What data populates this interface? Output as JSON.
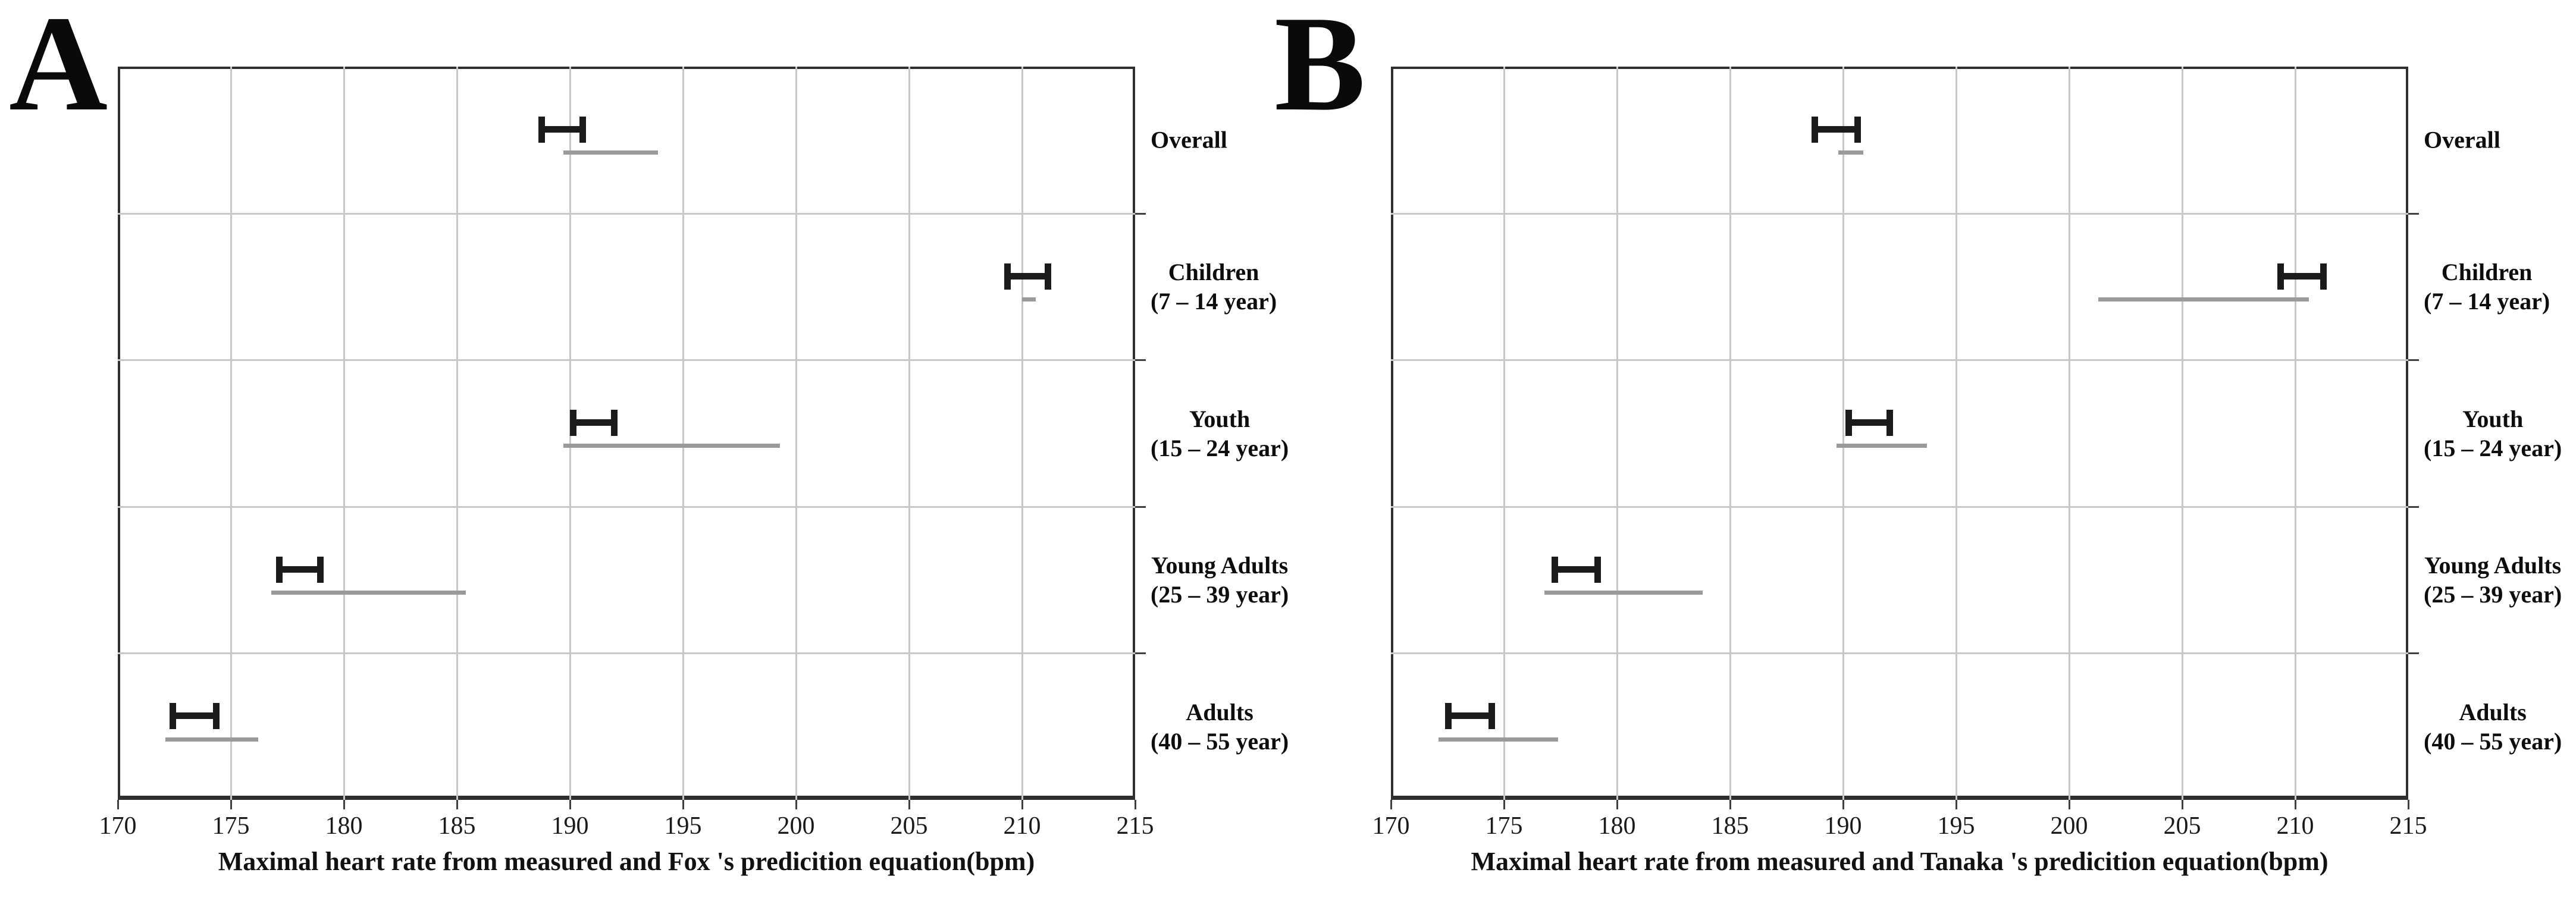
{
  "chart_data": [
    {
      "type": "errorbar",
      "panel_label": "A",
      "xlabel": "Maximal heart rate from measured and Fox 's predicition equation(bpm)",
      "xlim": [
        170,
        215
      ],
      "xticks": [
        170,
        175,
        180,
        185,
        190,
        195,
        200,
        205,
        210,
        215
      ],
      "grid": true,
      "legend": "none",
      "categories": [
        [
          "Overall"
        ],
        [
          "Children",
          "(7 – 14 year)"
        ],
        [
          "Youth",
          "(15 – 24 year)"
        ],
        [
          "Young Adults",
          "(25 – 39 year)"
        ],
        [
          "Adults",
          "(40 – 55 year)"
        ]
      ],
      "series": [
        {
          "name": "measured-ci-black-capped",
          "color": "#1b1b1b",
          "style": "capped",
          "intervals": [
            [
              188.6,
              190.7
            ],
            [
              209.2,
              211.3
            ],
            [
              190.0,
              192.1
            ],
            [
              177.0,
              179.1
            ],
            [
              172.3,
              174.5
            ]
          ]
        },
        {
          "name": "prediction-ci-gray",
          "color": "#9a9a9a",
          "style": "plain",
          "intervals": [
            [
              189.7,
              193.9
            ],
            [
              210.0,
              210.6
            ],
            [
              189.7,
              199.3
            ],
            [
              176.8,
              185.4
            ],
            [
              172.1,
              176.2
            ]
          ]
        }
      ]
    },
    {
      "type": "errorbar",
      "panel_label": "B",
      "xlabel": "Maximal heart rate from measured and Tanaka 's predicition equation(bpm)",
      "xlim": [
        170,
        215
      ],
      "xticks": [
        170,
        175,
        180,
        185,
        190,
        195,
        200,
        205,
        210,
        215
      ],
      "grid": true,
      "legend": "none",
      "categories": [
        [
          "Overall"
        ],
        [
          "Children",
          "(7 – 14 year)"
        ],
        [
          "Youth",
          "(15 – 24 year)"
        ],
        [
          "Young Adults",
          "(25 – 39 year)"
        ],
        [
          "Adults",
          "(40 – 55 year)"
        ]
      ],
      "series": [
        {
          "name": "measured-ci-black-capped",
          "color": "#1b1b1b",
          "style": "capped",
          "intervals": [
            [
              188.6,
              190.8
            ],
            [
              209.2,
              211.4
            ],
            [
              190.1,
              192.2
            ],
            [
              177.1,
              179.3
            ],
            [
              172.4,
              174.6
            ]
          ]
        },
        {
          "name": "prediction-ci-gray",
          "color": "#9a9a9a",
          "style": "plain",
          "intervals": [
            [
              189.8,
              190.9
            ],
            [
              201.3,
              210.6
            ],
            [
              189.7,
              193.7
            ],
            [
              176.8,
              183.8
            ],
            [
              172.1,
              177.4
            ]
          ]
        }
      ]
    }
  ]
}
